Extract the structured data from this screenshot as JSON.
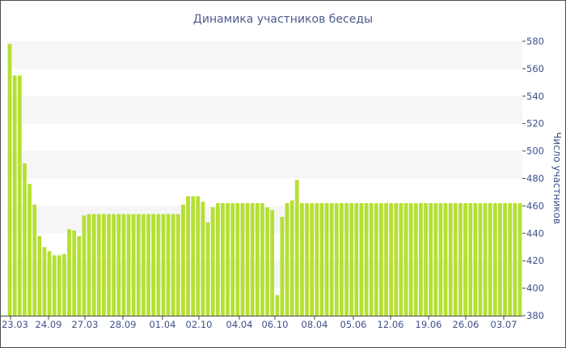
{
  "chart_data": {
    "type": "bar",
    "title": "Динамика участников беседы",
    "ylabel": "Число участников",
    "xlabel": "",
    "ylim": [
      380,
      580
    ],
    "yticks": [
      380,
      400,
      420,
      440,
      460,
      480,
      500,
      520,
      540,
      560,
      580
    ],
    "y_axis_position": "right",
    "bar_color": "#b5e033",
    "band_color": "#f6f6f6",
    "xtick_labels": [
      "23.03",
      "24.09",
      "27.03",
      "28.09",
      "01.04",
      "02.10",
      "04.04",
      "06.10",
      "08.04",
      "05.06",
      "12.06",
      "19.06",
      "26.06",
      "03.07"
    ],
    "values": [
      578,
      555,
      555,
      491,
      476,
      461,
      438,
      430,
      427,
      424,
      424,
      425,
      443,
      442,
      438,
      453,
      454,
      454,
      454,
      454,
      454,
      454,
      454,
      454,
      454,
      454,
      454,
      454,
      454,
      454,
      454,
      454,
      454,
      454,
      454,
      461,
      467,
      467,
      467,
      463,
      448,
      459,
      462,
      462,
      462,
      462,
      462,
      462,
      462,
      462,
      462,
      462,
      459,
      457,
      395,
      452,
      462,
      464,
      479,
      462,
      462,
      462,
      462,
      462,
      462,
      462,
      462,
      462,
      462,
      462,
      462,
      462,
      462,
      462,
      462,
      462,
      462,
      462,
      462,
      462,
      462,
      462,
      462,
      462,
      462,
      462,
      462,
      462,
      462,
      462,
      462,
      462,
      462,
      462,
      462,
      462,
      462,
      462,
      462,
      462,
      462,
      462,
      462,
      462
    ]
  }
}
